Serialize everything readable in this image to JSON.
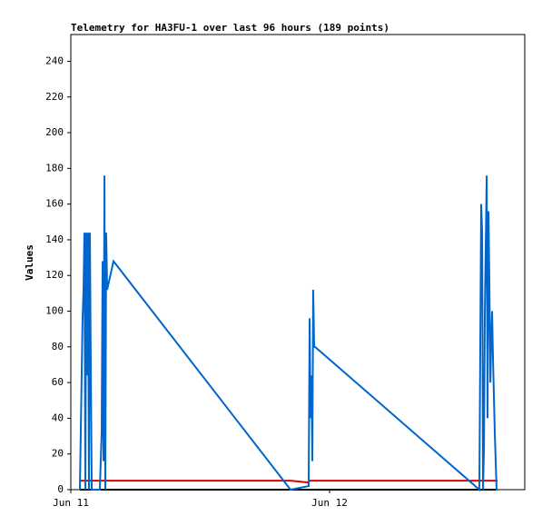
{
  "chart_data": {
    "type": "line",
    "title": "Telemetry for HA3FU-1 over last 96 hours (189 points)",
    "ylabel": "Values",
    "xlim": [
      0,
      42.1
    ],
    "ylim": [
      0,
      255
    ],
    "xticks": [
      {
        "value": 0,
        "label": "Jun 11"
      },
      {
        "value": 24,
        "label": "Jun 12"
      }
    ],
    "yticks": [
      0,
      20,
      40,
      60,
      80,
      100,
      120,
      140,
      160,
      180,
      200,
      220,
      240
    ],
    "series": [
      {
        "color": "#000000",
        "x": [
          0.84,
          39.58
        ],
        "values": [
          0,
          0
        ]
      },
      {
        "color": "#dd0000",
        "x": [
          0.84,
          20.38,
          22.06,
          22.15,
          39.58
        ],
        "values": [
          5,
          5,
          4,
          5,
          5
        ]
      },
      {
        "color": "#0066cc",
        "x": [
          0.84,
          1.09,
          1.18,
          1.26,
          1.35,
          1.43,
          1.52,
          1.6,
          1.68,
          1.77,
          1.85,
          1.94,
          2.69,
          2.86,
          2.95,
          3.03,
          3.12,
          3.2,
          3.28,
          3.37,
          3.96,
          20.38,
          22.06,
          22.15,
          22.23,
          22.32,
          22.4,
          22.48,
          22.57,
          22.65,
          37.89,
          38.06,
          38.15,
          38.23,
          38.32,
          38.4,
          38.57,
          38.65,
          38.74,
          38.82,
          38.91,
          38.99,
          39.07,
          39.16,
          39.33,
          39.49,
          39.58
        ],
        "values": [
          0,
          96,
          112,
          144,
          0,
          144,
          64,
          144,
          0,
          144,
          72,
          0,
          0,
          32,
          128,
          16,
          176,
          0,
          144,
          112,
          128,
          0,
          2,
          96,
          40,
          64,
          16,
          112,
          80,
          80,
          0,
          160,
          144,
          0,
          24,
          100,
          176,
          40,
          156,
          116,
          60,
          84,
          100,
          72,
          30,
          0,
          0
        ]
      }
    ]
  }
}
